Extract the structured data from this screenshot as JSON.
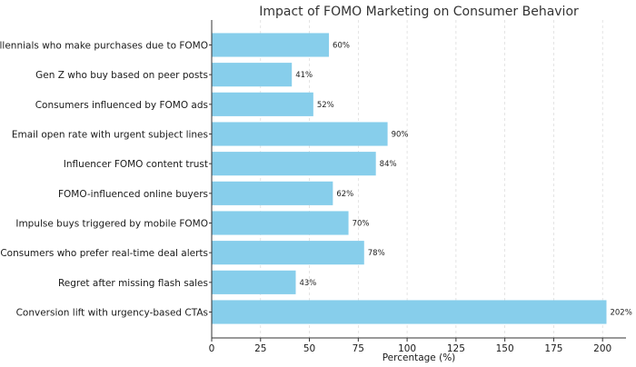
{
  "chart_data": {
    "type": "bar",
    "orientation": "horizontal",
    "title": "Impact of FOMO Marketing on Consumer Behavior",
    "xlabel": "Percentage (%)",
    "ylabel": "",
    "xlim": [
      0,
      212
    ],
    "xticks": [
      0,
      25,
      50,
      75,
      100,
      125,
      150,
      175,
      200
    ],
    "grid": true,
    "bar_color": "#87ceeb",
    "value_suffix": "%",
    "categories": [
      "Millennials who make purchases due to FOMO",
      "Gen Z who buy based on peer posts",
      "Consumers influenced by FOMO ads",
      "Email open rate with urgent subject lines",
      "Influencer FOMO content trust",
      "FOMO-influenced online buyers",
      "Impulse buys triggered by mobile FOMO",
      "Consumers who prefer real-time deal alerts",
      "Regret after missing flash sales",
      "Conversion lift with urgency-based CTAs"
    ],
    "values": [
      60,
      41,
      52,
      90,
      84,
      62,
      70,
      78,
      43,
      202
    ]
  }
}
